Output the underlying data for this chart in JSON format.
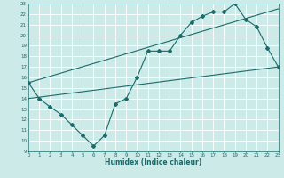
{
  "title": "",
  "xlabel": "Humidex (Indice chaleur)",
  "ylabel": "",
  "bg_color": "#cceae7",
  "line_color": "#1a6b6b",
  "grid_color": "#ffffff",
  "xmin": 0,
  "xmax": 23,
  "ymin": 9,
  "ymax": 23,
  "line1_x": [
    0,
    1,
    2,
    3,
    4,
    5,
    6,
    7,
    8,
    9,
    10,
    11,
    12,
    13,
    14,
    15,
    16,
    17,
    18,
    19,
    20,
    21,
    22,
    23
  ],
  "line1_y": [
    15.5,
    14.0,
    13.2,
    12.5,
    11.5,
    10.5,
    9.5,
    10.5,
    13.5,
    14.0,
    16.0,
    18.5,
    18.5,
    18.5,
    20.0,
    21.2,
    21.8,
    22.2,
    22.2,
    23.0,
    21.5,
    20.8,
    18.8,
    17.0
  ],
  "line2_x": [
    0,
    23
  ],
  "line2_y": [
    14.0,
    17.0
  ],
  "line3_x": [
    0,
    23
  ],
  "line3_y": [
    15.5,
    22.5
  ]
}
